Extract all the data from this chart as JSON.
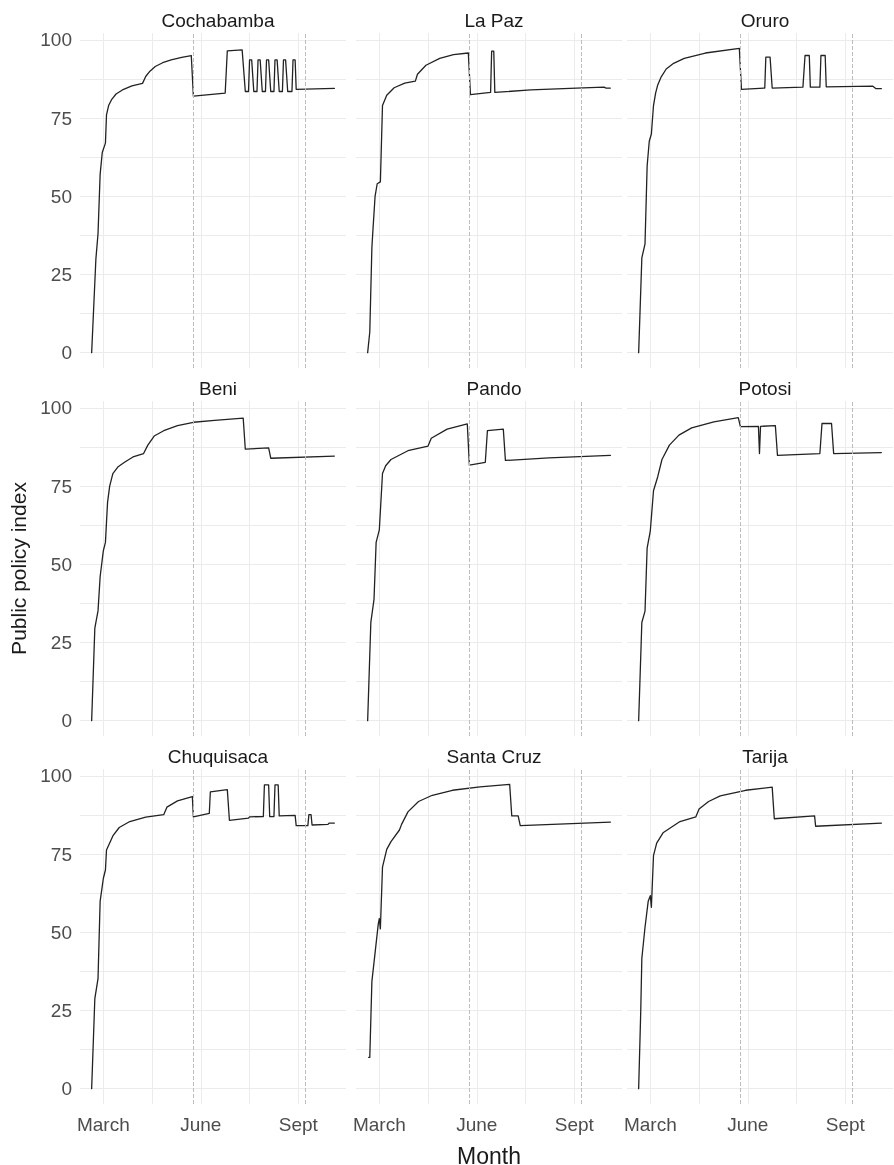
{
  "chart_data": [
    {
      "type": "line",
      "title": "Cochabamba",
      "xlim": [
        "--02-08",
        "--10-16"
      ],
      "ylim": [
        -4.9,
        102.2
      ],
      "grid": true,
      "tick_labels": "y",
      "xticks": [
        {
          "value": "--03-01",
          "label": null
        },
        {
          "value": "--04-16",
          "label": null
        },
        {
          "value": "--06-01",
          "label": null
        },
        {
          "value": "--07-17",
          "label": null
        },
        {
          "value": "--09-01",
          "label": null
        }
      ],
      "yticks": [
        0,
        {
          "value": 12.5,
          "label": null
        },
        25,
        {
          "value": 37.5,
          "label": null
        },
        50,
        {
          "value": 62.5,
          "label": null
        },
        75,
        {
          "value": 87.5,
          "label": null
        },
        100
      ],
      "ref_lines": [
        {
          "axis": "x",
          "value": "--05-25",
          "color": "#bdbdbd",
          "line_style": "dashed"
        },
        {
          "axis": "x",
          "value": "--09-08",
          "color": "#bdbdbd",
          "line_style": "dashed"
        }
      ],
      "series": [
        {
          "color": "#222222",
          "x": [
            "--02-19",
            "--02-23",
            "--02-25",
            "--02-27",
            "--02-29",
            "--03-03",
            "--03-04",
            "--03-06",
            "--03-09",
            "--03-13",
            "--03-19",
            "--03-28",
            "--04-07",
            "--04-10",
            "--04-14",
            "--04-19",
            "--04-26",
            "--05-04",
            "--05-14",
            "--05-23",
            "--05-25",
            "--06-24",
            "--06-26",
            "--07-10",
            "--07-13",
            "--07-16",
            "--07-17",
            "--07-19",
            "--07-21",
            "--07-24",
            "--07-25",
            "--07-27",
            "--07-29",
            "--08-01",
            "--08-02",
            "--08-04",
            "--08-06",
            "--08-09",
            "--08-10",
            "--08-12",
            "--08-14",
            "--08-17",
            "--08-18",
            "--08-20",
            "--08-22",
            "--08-26",
            "--08-27",
            "--08-29",
            "--08-30",
            "--10-05"
          ],
          "values": [
            0,
            30,
            38,
            57,
            64,
            67,
            76,
            79,
            81,
            82.7,
            84,
            85.3,
            86.1,
            88.3,
            90,
            91.5,
            92.7,
            93.6,
            94.4,
            95,
            82,
            83,
            96.5,
            96.8,
            83.5,
            83.5,
            93.6,
            93.6,
            83.5,
            83.5,
            93.6,
            93.6,
            83.5,
            83.5,
            93.6,
            93.6,
            83.5,
            83.5,
            93.6,
            93.6,
            83.5,
            83.5,
            93.6,
            93.6,
            83.5,
            83.5,
            93.6,
            93.6,
            84.2,
            84.5
          ]
        }
      ]
    },
    {
      "type": "line",
      "title": "La Paz",
      "xlim": [
        "--02-08",
        "--10-16"
      ],
      "ylim": [
        -4.9,
        102.2
      ],
      "grid": true,
      "tick_labels": false,
      "xticks": [
        {
          "value": "--03-01",
          "label": null
        },
        {
          "value": "--04-16",
          "label": null
        },
        {
          "value": "--06-01",
          "label": null
        },
        {
          "value": "--07-17",
          "label": null
        },
        {
          "value": "--09-01",
          "label": null
        }
      ],
      "yticks": [
        0,
        {
          "value": 12.5,
          "label": null
        },
        25,
        {
          "value": 37.5,
          "label": null
        },
        50,
        {
          "value": 62.5,
          "label": null
        },
        75,
        {
          "value": 87.5,
          "label": null
        },
        100
      ],
      "ref_lines": [
        {
          "axis": "x",
          "value": "--05-25",
          "color": "#bdbdbd",
          "line_style": "dashed"
        },
        {
          "axis": "x",
          "value": "--09-08",
          "color": "#bdbdbd",
          "line_style": "dashed"
        }
      ],
      "series": [
        {
          "color": "#222222",
          "x": [
            "--02-19",
            "--02-21",
            "--02-23",
            "--02-24",
            "--02-26",
            "--02-28",
            "--03-02",
            "--03-04",
            "--03-08",
            "--03-15",
            "--03-25",
            "--04-04",
            "--04-06",
            "--04-14",
            "--04-27",
            "--05-10",
            "--05-24",
            "--05-26",
            "--06-14",
            "--06-15",
            "--06-17",
            "--06-18",
            "--07-22",
            "--09-03",
            "--09-29",
            "--10-01",
            "--10-05"
          ],
          "values": [
            0,
            6.6,
            33.7,
            39.3,
            50,
            54,
            54.6,
            79,
            82.3,
            84.7,
            86.2,
            86.8,
            89,
            91.9,
            94.1,
            95.3,
            95.8,
            82.5,
            83.2,
            96.4,
            96.4,
            83.2,
            84,
            84.6,
            84.9,
            84.6,
            84.6
          ]
        }
      ]
    },
    {
      "type": "line",
      "title": "Oruro",
      "xlim": [
        "--02-08",
        "--10-16"
      ],
      "ylim": [
        -4.9,
        102.2
      ],
      "grid": true,
      "tick_labels": false,
      "xticks": [
        {
          "value": "--03-01",
          "label": null
        },
        {
          "value": "--04-16",
          "label": null
        },
        {
          "value": "--06-01",
          "label": null
        },
        {
          "value": "--07-17",
          "label": null
        },
        {
          "value": "--09-01",
          "label": null
        }
      ],
      "yticks": [
        0,
        {
          "value": 12.5,
          "label": null
        },
        25,
        {
          "value": 37.5,
          "label": null
        },
        50,
        {
          "value": 62.5,
          "label": null
        },
        75,
        {
          "value": 87.5,
          "label": null
        },
        100
      ],
      "ref_lines": [
        {
          "axis": "x",
          "value": "--05-25",
          "color": "#bdbdbd",
          "line_style": "dashed"
        },
        {
          "axis": "x",
          "value": "--09-08",
          "color": "#bdbdbd",
          "line_style": "dashed"
        }
      ],
      "series": [
        {
          "color": "#222222",
          "x": [
            "--02-19",
            "--02-22",
            "--02-25",
            "--02-27",
            "--02-29",
            "--03-02",
            "--03-04",
            "--03-06",
            "--03-08",
            "--03-11",
            "--03-16",
            "--03-23",
            "--04-02",
            "--04-22",
            "--05-24",
            "--05-26",
            "--06-17",
            "--06-18",
            "--06-22",
            "--06-24",
            "--07-23",
            "--07-25",
            "--07-29",
            "--07-30",
            "--08-08",
            "--08-09",
            "--08-13",
            "--08-14",
            "--09-27",
            "--09-30",
            "--10-05"
          ],
          "values": [
            0,
            30.3,
            34.8,
            59.7,
            67.6,
            69.9,
            79,
            83,
            85.6,
            88,
            90.7,
            92.5,
            94.1,
            95.8,
            97.3,
            84.2,
            84.6,
            94.5,
            94.5,
            84.6,
            84.9,
            95,
            95,
            84.9,
            84.9,
            95,
            95,
            85,
            85.2,
            84.4,
            84.4
          ]
        }
      ]
    },
    {
      "type": "line",
      "title": "Beni",
      "ylabel": "Public policy index",
      "xlim": [
        "--02-08",
        "--10-16"
      ],
      "ylim": [
        -4.9,
        102.2
      ],
      "grid": true,
      "tick_labels": "y",
      "xticks": [
        {
          "value": "--03-01",
          "label": null
        },
        {
          "value": "--04-16",
          "label": null
        },
        {
          "value": "--06-01",
          "label": null
        },
        {
          "value": "--07-17",
          "label": null
        },
        {
          "value": "--09-01",
          "label": null
        }
      ],
      "yticks": [
        0,
        {
          "value": 12.5,
          "label": null
        },
        25,
        {
          "value": 37.5,
          "label": null
        },
        50,
        {
          "value": 62.5,
          "label": null
        },
        75,
        {
          "value": 87.5,
          "label": null
        },
        100
      ],
      "ref_lines": [
        {
          "axis": "x",
          "value": "--05-25",
          "color": "#bdbdbd",
          "line_style": "dashed"
        },
        {
          "axis": "x",
          "value": "--09-08",
          "color": "#bdbdbd",
          "line_style": "dashed"
        }
      ],
      "series": [
        {
          "color": "#222222",
          "x": [
            "--02-19",
            "--02-22",
            "--02-25",
            "--02-27",
            "--03-01",
            "--03-03",
            "--03-05",
            "--03-07",
            "--03-10",
            "--03-15",
            "--03-21",
            "--03-29",
            "--04-08",
            "--04-12",
            "--04-18",
            "--04-27",
            "--05-10",
            "--05-25",
            "--06-14",
            "--07-11",
            "--07-13",
            "--08-04",
            "--08-06",
            "--10-05"
          ],
          "values": [
            0,
            29.6,
            35.1,
            46,
            54.3,
            57,
            69.8,
            75,
            79,
            81.2,
            82.6,
            84.3,
            85.4,
            88.1,
            91,
            92.7,
            94.3,
            95.4,
            96,
            96.7,
            86.8,
            87.2,
            83.9,
            84.6
          ]
        }
      ]
    },
    {
      "type": "line",
      "title": "Pando",
      "xlim": [
        "--02-08",
        "--10-16"
      ],
      "ylim": [
        -4.9,
        102.2
      ],
      "grid": true,
      "tick_labels": false,
      "xticks": [
        {
          "value": "--03-01",
          "label": null
        },
        {
          "value": "--04-16",
          "label": null
        },
        {
          "value": "--06-01",
          "label": null
        },
        {
          "value": "--07-17",
          "label": null
        },
        {
          "value": "--09-01",
          "label": null
        }
      ],
      "yticks": [
        0,
        {
          "value": 12.5,
          "label": null
        },
        25,
        {
          "value": 37.5,
          "label": null
        },
        50,
        {
          "value": 62.5,
          "label": null
        },
        75,
        {
          "value": 87.5,
          "label": null
        },
        100
      ],
      "ref_lines": [
        {
          "axis": "x",
          "value": "--05-25",
          "color": "#bdbdbd",
          "line_style": "dashed"
        },
        {
          "axis": "x",
          "value": "--09-08",
          "color": "#bdbdbd",
          "line_style": "dashed"
        }
      ],
      "series": [
        {
          "color": "#222222",
          "x": [
            "--02-19",
            "--02-22",
            "--02-25",
            "--02-27",
            "--03-01",
            "--03-04",
            "--03-07",
            "--03-12",
            "--03-28",
            "--04-16",
            "--04-19",
            "--05-04",
            "--05-23",
            "--05-25",
            "--06-09",
            "--06-11",
            "--06-26",
            "--06-28",
            "--08-08",
            "--10-05"
          ],
          "values": [
            0,
            31.4,
            38.8,
            57,
            61,
            79,
            81.5,
            83.5,
            86.3,
            87.8,
            90.3,
            93.2,
            94.9,
            81.7,
            82.6,
            92.7,
            93.2,
            83.2,
            84,
            84.8
          ]
        }
      ]
    },
    {
      "type": "line",
      "title": "Potosi",
      "xlim": [
        "--02-08",
        "--10-16"
      ],
      "ylim": [
        -4.9,
        102.2
      ],
      "grid": true,
      "tick_labels": false,
      "xticks": [
        {
          "value": "--03-01",
          "label": null
        },
        {
          "value": "--04-16",
          "label": null
        },
        {
          "value": "--06-01",
          "label": null
        },
        {
          "value": "--07-17",
          "label": null
        },
        {
          "value": "--09-01",
          "label": null
        }
      ],
      "yticks": [
        0,
        {
          "value": 12.5,
          "label": null
        },
        25,
        {
          "value": 37.5,
          "label": null
        },
        50,
        {
          "value": 62.5,
          "label": null
        },
        75,
        {
          "value": 87.5,
          "label": null
        },
        100
      ],
      "ref_lines": [
        {
          "axis": "x",
          "value": "--05-25",
          "color": "#bdbdbd",
          "line_style": "dashed"
        },
        {
          "axis": "x",
          "value": "--09-08",
          "color": "#bdbdbd",
          "line_style": "dashed"
        }
      ],
      "series": [
        {
          "color": "#222222",
          "x": [
            "--02-19",
            "--02-22",
            "--02-25",
            "--02-27",
            "--03-01",
            "--03-04",
            "--03-08",
            "--03-12",
            "--03-19",
            "--03-28",
            "--04-09",
            "--04-30",
            "--05-23",
            "--05-25",
            "--06-11",
            "--06-12",
            "--06-13",
            "--06-27",
            "--06-29",
            "--08-08",
            "--08-10",
            "--08-19",
            "--08-21",
            "--10-05"
          ],
          "values": [
            0,
            31.4,
            35,
            55.2,
            60.7,
            73.5,
            78,
            83.5,
            88.1,
            91.3,
            93.6,
            95.5,
            96.9,
            94,
            94.1,
            85.4,
            94.1,
            94.3,
            84.8,
            85.4,
            95,
            95,
            85.4,
            85.7
          ]
        }
      ]
    },
    {
      "type": "line",
      "title": "Chuquisaca",
      "xlim": [
        "--02-08",
        "--10-16"
      ],
      "ylim": [
        -4.9,
        102.2
      ],
      "grid": true,
      "xticks": [
        {
          "value": "--03-01",
          "label": "March"
        },
        {
          "value": "--04-16",
          "label": null
        },
        {
          "value": "--06-01",
          "label": "June"
        },
        {
          "value": "--07-17",
          "label": null
        },
        {
          "value": "--09-01",
          "label": "Sept"
        }
      ],
      "yticks": [
        0,
        {
          "value": 12.5,
          "label": null
        },
        25,
        {
          "value": 37.5,
          "label": null
        },
        50,
        {
          "value": 62.5,
          "label": null
        },
        75,
        {
          "value": 87.5,
          "label": null
        },
        100
      ],
      "ref_lines": [
        {
          "axis": "x",
          "value": "--05-25",
          "color": "#bdbdbd",
          "line_style": "dashed"
        },
        {
          "axis": "x",
          "value": "--09-08",
          "color": "#bdbdbd",
          "line_style": "dashed"
        }
      ],
      "series": [
        {
          "color": "#222222",
          "x": [
            "--02-19",
            "--02-22",
            "--02-25",
            "--02-27",
            "--03-01",
            "--03-03",
            "--03-04",
            "--03-10",
            "--03-16",
            "--03-26",
            "--04-10",
            "--04-27",
            "--04-30",
            "--05-10",
            "--05-24",
            "--05-25",
            "--06-09",
            "--06-10",
            "--06-26",
            "--06-28",
            "--07-16",
            "--07-17",
            "--07-30",
            "--07-31",
            "--08-04",
            "--08-05",
            "--08-09",
            "--08-10",
            "--08-13",
            "--08-14",
            "--08-29",
            "--08-30",
            "--09-10",
            "--09-11",
            "--09-13",
            "--09-14",
            "--09-29",
            "--09-30",
            "--10-05"
          ],
          "values": [
            0,
            28.8,
            35.2,
            59.9,
            67.2,
            69.9,
            76.3,
            80.8,
            83.5,
            85.4,
            86.8,
            87.6,
            90,
            92,
            93.4,
            86.9,
            88,
            94.9,
            95.6,
            85.8,
            86.5,
            86.9,
            87,
            97.1,
            97.1,
            87,
            87,
            97.1,
            97.1,
            87.2,
            87.4,
            84.1,
            84.1,
            87.6,
            87.6,
            84.3,
            84.5,
            84.9,
            84.9
          ]
        }
      ]
    },
    {
      "type": "line",
      "title": "Santa Cruz",
      "xlabel": "Month",
      "xlim": [
        "--02-08",
        "--10-16"
      ],
      "ylim": [
        -4.9,
        102.2
      ],
      "grid": true,
      "tick_labels": "x",
      "xticks": [
        {
          "value": "--03-01",
          "label": "March"
        },
        {
          "value": "--04-16",
          "label": null
        },
        {
          "value": "--06-01",
          "label": "June"
        },
        {
          "value": "--07-17",
          "label": null
        },
        {
          "value": "--09-01",
          "label": "Sept"
        }
      ],
      "yticks": [
        0,
        {
          "value": 12.5,
          "label": null
        },
        25,
        {
          "value": 37.5,
          "label": null
        },
        50,
        {
          "value": 62.5,
          "label": null
        },
        75,
        {
          "value": 87.5,
          "label": null
        },
        100
      ],
      "ref_lines": [
        {
          "axis": "x",
          "value": "--05-25",
          "color": "#bdbdbd",
          "line_style": "dashed"
        },
        {
          "axis": "x",
          "value": "--09-08",
          "color": "#bdbdbd",
          "line_style": "dashed"
        }
      ],
      "series": [
        {
          "color": "#222222",
          "x": [
            "--02-20",
            "--02-21",
            "--02-23",
            "--02-26",
            "--02-29",
            "--03-01",
            "--03-02",
            "--03-04",
            "--03-08",
            "--03-12",
            "--03-20",
            "--03-22",
            "--03-28",
            "--04-07",
            "--04-20",
            "--05-09",
            "--06-04",
            "--07-02",
            "--07-04",
            "--07-10",
            "--07-12",
            "--10-05"
          ],
          "values": [
            10,
            10,
            34.3,
            43.4,
            52.6,
            54.4,
            51.1,
            70.8,
            76.5,
            79,
            82.7,
            84.5,
            88.5,
            91.8,
            93.8,
            95.4,
            96.5,
            97.3,
            87.2,
            87.2,
            84.1,
            85.2
          ]
        }
      ]
    },
    {
      "type": "line",
      "title": "Tarija",
      "xlim": [
        "--02-08",
        "--10-16"
      ],
      "ylim": [
        -4.9,
        102.2
      ],
      "grid": true,
      "tick_labels": "x",
      "xticks": [
        {
          "value": "--03-01",
          "label": "March"
        },
        {
          "value": "--04-16",
          "label": null
        },
        {
          "value": "--06-01",
          "label": "June"
        },
        {
          "value": "--07-17",
          "label": null
        },
        {
          "value": "--09-01",
          "label": "Sept"
        }
      ],
      "yticks": [
        0,
        {
          "value": 12.5,
          "label": null
        },
        25,
        {
          "value": 37.5,
          "label": null
        },
        50,
        {
          "value": 62.5,
          "label": null
        },
        75,
        {
          "value": 87.5,
          "label": null
        },
        100
      ],
      "ref_lines": [
        {
          "axis": "x",
          "value": "--05-25",
          "color": "#bdbdbd",
          "line_style": "dashed"
        },
        {
          "axis": "x",
          "value": "--09-08",
          "color": "#bdbdbd",
          "line_style": "dashed"
        }
      ],
      "series": [
        {
          "color": "#222222",
          "x": [
            "--02-19",
            "--02-21",
            "--02-22",
            "--02-25",
            "--02-28",
            "--03-01",
            "--03-02",
            "--03-04",
            "--03-07",
            "--03-13",
            "--03-29",
            "--04-13",
            "--04-16",
            "--04-25",
            "--05-06",
            "--05-30",
            "--06-24",
            "--06-26",
            "--08-03",
            "--08-04",
            "--10-05"
          ],
          "values": [
            0,
            25.2,
            41.6,
            51.6,
            59.9,
            61.7,
            58,
            74.5,
            78.5,
            81.8,
            85.4,
            86.9,
            89.4,
            91.8,
            93.6,
            95.4,
            96.4,
            86.3,
            87.2,
            83.9,
            84.9
          ]
        }
      ]
    }
  ]
}
